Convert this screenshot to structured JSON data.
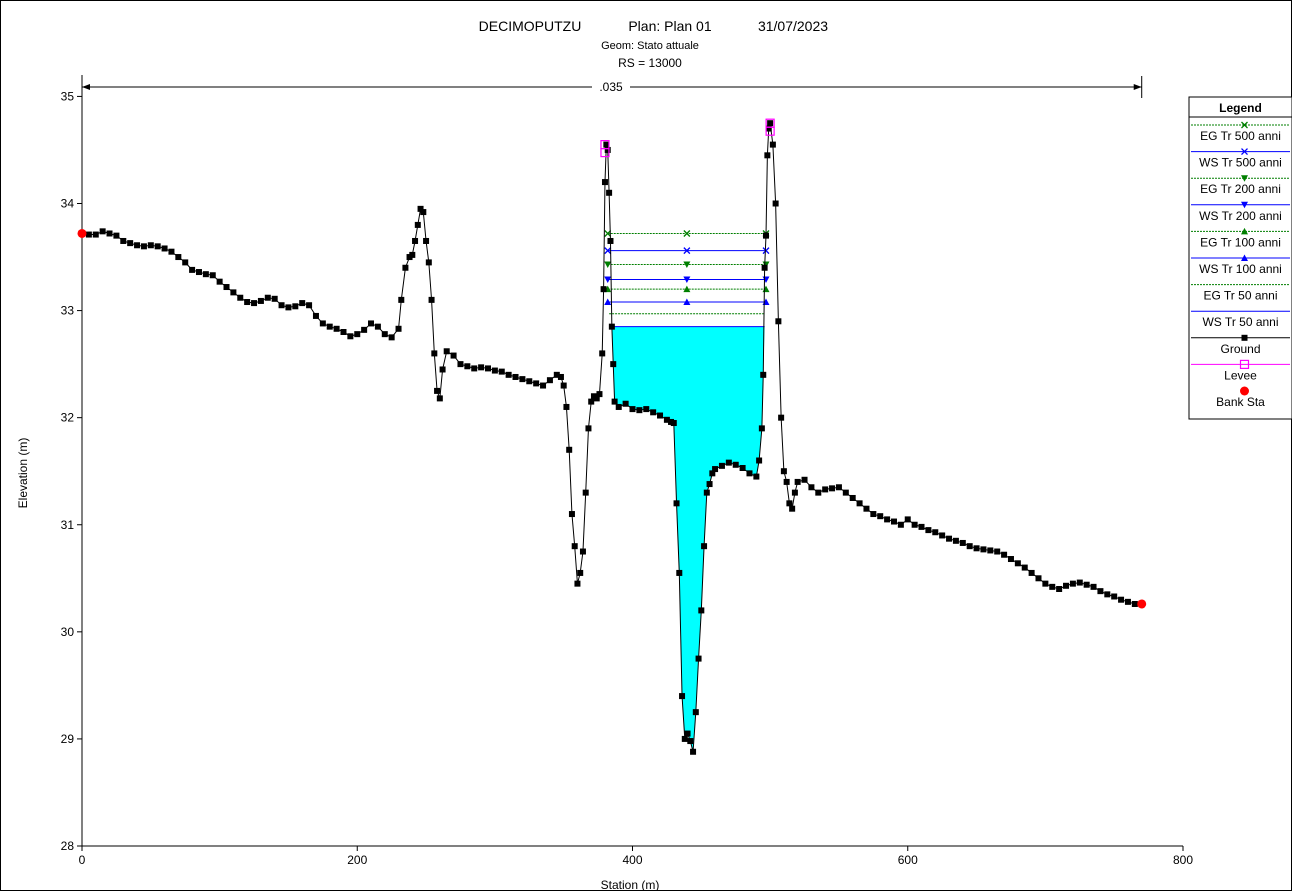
{
  "chart_data": {
    "type": "line",
    "title": "DECIMOPUTZU",
    "plan": "Plan: Plan 01",
    "date": "31/07/2023",
    "geom": "Geom: Stato attuale",
    "rs": "RS = 13000",
    "manning_label": ".035",
    "xlabel": "Station (m)",
    "ylabel": "Elevation (m)",
    "xlim": [
      0,
      800
    ],
    "ylim": [
      28,
      35.2
    ],
    "xticks": [
      0,
      200,
      400,
      600,
      800
    ],
    "yticks": [
      28,
      29,
      30,
      31,
      32,
      33,
      34,
      35
    ],
    "manning_span": [
      0,
      770
    ],
    "colors": {
      "water_fill": "#00ffff",
      "eg_line": "#007f00",
      "ws_line": "#0000ff",
      "ground": "#000000",
      "levee": "#ff00ff",
      "bank": "#ff0000"
    },
    "water_surfaces": [
      {
        "name": "EG Tr 500 anni",
        "kind": "EG",
        "elev": 33.72,
        "x1": 382,
        "x2": 497,
        "marker": "x"
      },
      {
        "name": "WS Tr 500 anni",
        "kind": "WS",
        "elev": 33.56,
        "x1": 382,
        "x2": 497,
        "marker": "x"
      },
      {
        "name": "EG Tr 200 anni",
        "kind": "EG",
        "elev": 33.43,
        "x1": 382,
        "x2": 497,
        "marker": "tri-down"
      },
      {
        "name": "WS Tr 200 anni",
        "kind": "WS",
        "elev": 33.29,
        "x1": 382,
        "x2": 497,
        "marker": "tri-down"
      },
      {
        "name": "EG Tr 100 anni",
        "kind": "EG",
        "elev": 33.2,
        "x1": 382,
        "x2": 497,
        "marker": "tri-up"
      },
      {
        "name": "WS Tr 100 anni",
        "kind": "WS",
        "elev": 33.08,
        "x1": 382,
        "x2": 497,
        "marker": "tri-up"
      },
      {
        "name": "EG Tr 50 anni",
        "kind": "EG",
        "elev": 32.97,
        "x1": 383,
        "x2": 496,
        "marker": "none"
      },
      {
        "name": "WS Tr 50 anni",
        "kind": "WS",
        "elev": 32.85,
        "x1": 383,
        "x2": 496,
        "marker": "none"
      }
    ],
    "legend": {
      "title": "Legend",
      "items": [
        {
          "label": "EG Tr 500 anni",
          "kind": "EG",
          "marker": "x"
        },
        {
          "label": "WS Tr 500 anni",
          "kind": "WS",
          "marker": "x"
        },
        {
          "label": "EG Tr 200 anni",
          "kind": "EG",
          "marker": "tri-down"
        },
        {
          "label": "WS Tr 200 anni",
          "kind": "WS",
          "marker": "tri-down"
        },
        {
          "label": "EG Tr 100 anni",
          "kind": "EG",
          "marker": "tri-up"
        },
        {
          "label": "WS Tr 100 anni",
          "kind": "WS",
          "marker": "tri-up"
        },
        {
          "label": "EG Tr 50 anni",
          "kind": "EG",
          "marker": "none"
        },
        {
          "label": "WS Tr 50 anni",
          "kind": "WS",
          "marker": "none"
        },
        {
          "label": "Ground",
          "kind": "ground",
          "marker": "square"
        },
        {
          "label": "Levee",
          "kind": "levee",
          "marker": "open-square"
        },
        {
          "label": "Bank Sta",
          "kind": "bank",
          "marker": "circle"
        }
      ]
    },
    "ground": [
      [
        0,
        33.72
      ],
      [
        5,
        33.71
      ],
      [
        10,
        33.71
      ],
      [
        15,
        33.74
      ],
      [
        20,
        33.72
      ],
      [
        25,
        33.7
      ],
      [
        30,
        33.65
      ],
      [
        35,
        33.63
      ],
      [
        40,
        33.61
      ],
      [
        45,
        33.6
      ],
      [
        50,
        33.61
      ],
      [
        55,
        33.6
      ],
      [
        60,
        33.58
      ],
      [
        65,
        33.55
      ],
      [
        70,
        33.5
      ],
      [
        75,
        33.45
      ],
      [
        80,
        33.38
      ],
      [
        85,
        33.36
      ],
      [
        90,
        33.34
      ],
      [
        95,
        33.33
      ],
      [
        100,
        33.27
      ],
      [
        105,
        33.22
      ],
      [
        110,
        33.17
      ],
      [
        115,
        33.12
      ],
      [
        120,
        33.08
      ],
      [
        125,
        33.07
      ],
      [
        130,
        33.09
      ],
      [
        135,
        33.12
      ],
      [
        140,
        33.11
      ],
      [
        145,
        33.05
      ],
      [
        150,
        33.03
      ],
      [
        155,
        33.04
      ],
      [
        160,
        33.07
      ],
      [
        165,
        33.05
      ],
      [
        170,
        32.95
      ],
      [
        175,
        32.88
      ],
      [
        180,
        32.85
      ],
      [
        185,
        32.83
      ],
      [
        190,
        32.8
      ],
      [
        195,
        32.76
      ],
      [
        200,
        32.78
      ],
      [
        205,
        32.82
      ],
      [
        210,
        32.88
      ],
      [
        215,
        32.85
      ],
      [
        220,
        32.78
      ],
      [
        225,
        32.75
      ],
      [
        230,
        32.83
      ],
      [
        232,
        33.1
      ],
      [
        235,
        33.4
      ],
      [
        238,
        33.5
      ],
      [
        240,
        33.52
      ],
      [
        242,
        33.65
      ],
      [
        244,
        33.8
      ],
      [
        246,
        33.95
      ],
      [
        248,
        33.92
      ],
      [
        250,
        33.65
      ],
      [
        252,
        33.45
      ],
      [
        254,
        33.1
      ],
      [
        256,
        32.6
      ],
      [
        258,
        32.25
      ],
      [
        260,
        32.18
      ],
      [
        262,
        32.45
      ],
      [
        265,
        32.62
      ],
      [
        270,
        32.58
      ],
      [
        275,
        32.5
      ],
      [
        280,
        32.48
      ],
      [
        285,
        32.46
      ],
      [
        290,
        32.47
      ],
      [
        295,
        32.46
      ],
      [
        300,
        32.44
      ],
      [
        305,
        32.43
      ],
      [
        310,
        32.4
      ],
      [
        315,
        32.38
      ],
      [
        320,
        32.36
      ],
      [
        325,
        32.34
      ],
      [
        330,
        32.32
      ],
      [
        335,
        32.3
      ],
      [
        340,
        32.35
      ],
      [
        345,
        32.4
      ],
      [
        348,
        32.38
      ],
      [
        350,
        32.3
      ],
      [
        352,
        32.1
      ],
      [
        354,
        31.7
      ],
      [
        356,
        31.1
      ],
      [
        358,
        30.8
      ],
      [
        360,
        30.45
      ],
      [
        362,
        30.55
      ],
      [
        364,
        30.75
      ],
      [
        366,
        31.3
      ],
      [
        368,
        31.9
      ],
      [
        370,
        32.15
      ],
      [
        372,
        32.2
      ],
      [
        374,
        32.18
      ],
      [
        376,
        32.22
      ],
      [
        378,
        32.6
      ],
      [
        379,
        33.2
      ],
      [
        380,
        34.2
      ],
      [
        381,
        34.55
      ],
      [
        382,
        34.5
      ],
      [
        383,
        34.1
      ],
      [
        384,
        33.65
      ],
      [
        385,
        32.85
      ],
      [
        386,
        32.5
      ],
      [
        387,
        32.15
      ],
      [
        390,
        32.1
      ],
      [
        395,
        32.13
      ],
      [
        400,
        32.08
      ],
      [
        405,
        32.07
      ],
      [
        410,
        32.08
      ],
      [
        415,
        32.05
      ],
      [
        420,
        32.02
      ],
      [
        425,
        31.98
      ],
      [
        428,
        31.96
      ],
      [
        430,
        31.95
      ],
      [
        432,
        31.2
      ],
      [
        434,
        30.55
      ],
      [
        436,
        29.4
      ],
      [
        438,
        29.0
      ],
      [
        440,
        29.05
      ],
      [
        442,
        28.98
      ],
      [
        444,
        28.88
      ],
      [
        446,
        29.25
      ],
      [
        448,
        29.75
      ],
      [
        450,
        30.2
      ],
      [
        452,
        30.8
      ],
      [
        454,
        31.3
      ],
      [
        456,
        31.38
      ],
      [
        458,
        31.48
      ],
      [
        460,
        31.52
      ],
      [
        465,
        31.55
      ],
      [
        470,
        31.58
      ],
      [
        475,
        31.56
      ],
      [
        480,
        31.53
      ],
      [
        485,
        31.48
      ],
      [
        490,
        31.45
      ],
      [
        492,
        31.6
      ],
      [
        494,
        31.9
      ],
      [
        495,
        32.4
      ],
      [
        496,
        33.4
      ],
      [
        497,
        33.7
      ],
      [
        498,
        34.45
      ],
      [
        499,
        34.7
      ],
      [
        500,
        34.75
      ],
      [
        502,
        34.55
      ],
      [
        504,
        34.0
      ],
      [
        506,
        32.9
      ],
      [
        508,
        32.0
      ],
      [
        510,
        31.5
      ],
      [
        512,
        31.4
      ],
      [
        514,
        31.2
      ],
      [
        516,
        31.15
      ],
      [
        518,
        31.3
      ],
      [
        520,
        31.4
      ],
      [
        525,
        31.42
      ],
      [
        530,
        31.35
      ],
      [
        535,
        31.3
      ],
      [
        540,
        31.33
      ],
      [
        545,
        31.34
      ],
      [
        550,
        31.35
      ],
      [
        555,
        31.3
      ],
      [
        560,
        31.25
      ],
      [
        565,
        31.2
      ],
      [
        570,
        31.15
      ],
      [
        575,
        31.1
      ],
      [
        580,
        31.08
      ],
      [
        585,
        31.05
      ],
      [
        590,
        31.03
      ],
      [
        595,
        31.0
      ],
      [
        600,
        31.05
      ],
      [
        605,
        31.0
      ],
      [
        610,
        30.98
      ],
      [
        615,
        30.95
      ],
      [
        620,
        30.93
      ],
      [
        625,
        30.9
      ],
      [
        630,
        30.87
      ],
      [
        635,
        30.85
      ],
      [
        640,
        30.83
      ],
      [
        645,
        30.8
      ],
      [
        650,
        30.78
      ],
      [
        655,
        30.77
      ],
      [
        660,
        30.76
      ],
      [
        665,
        30.75
      ],
      [
        670,
        30.72
      ],
      [
        675,
        30.68
      ],
      [
        680,
        30.64
      ],
      [
        685,
        30.6
      ],
      [
        690,
        30.55
      ],
      [
        695,
        30.5
      ],
      [
        700,
        30.45
      ],
      [
        705,
        30.42
      ],
      [
        710,
        30.4
      ],
      [
        715,
        30.43
      ],
      [
        720,
        30.45
      ],
      [
        725,
        30.46
      ],
      [
        730,
        30.44
      ],
      [
        735,
        30.42
      ],
      [
        740,
        30.38
      ],
      [
        745,
        30.35
      ],
      [
        750,
        30.33
      ],
      [
        755,
        30.3
      ],
      [
        760,
        30.28
      ],
      [
        765,
        30.26
      ],
      [
        770,
        30.26
      ]
    ],
    "levees": [
      [
        380,
        34.55
      ],
      [
        500,
        34.75
      ]
    ],
    "bank_stations": [
      [
        0,
        33.72
      ],
      [
        770,
        30.26
      ]
    ]
  }
}
